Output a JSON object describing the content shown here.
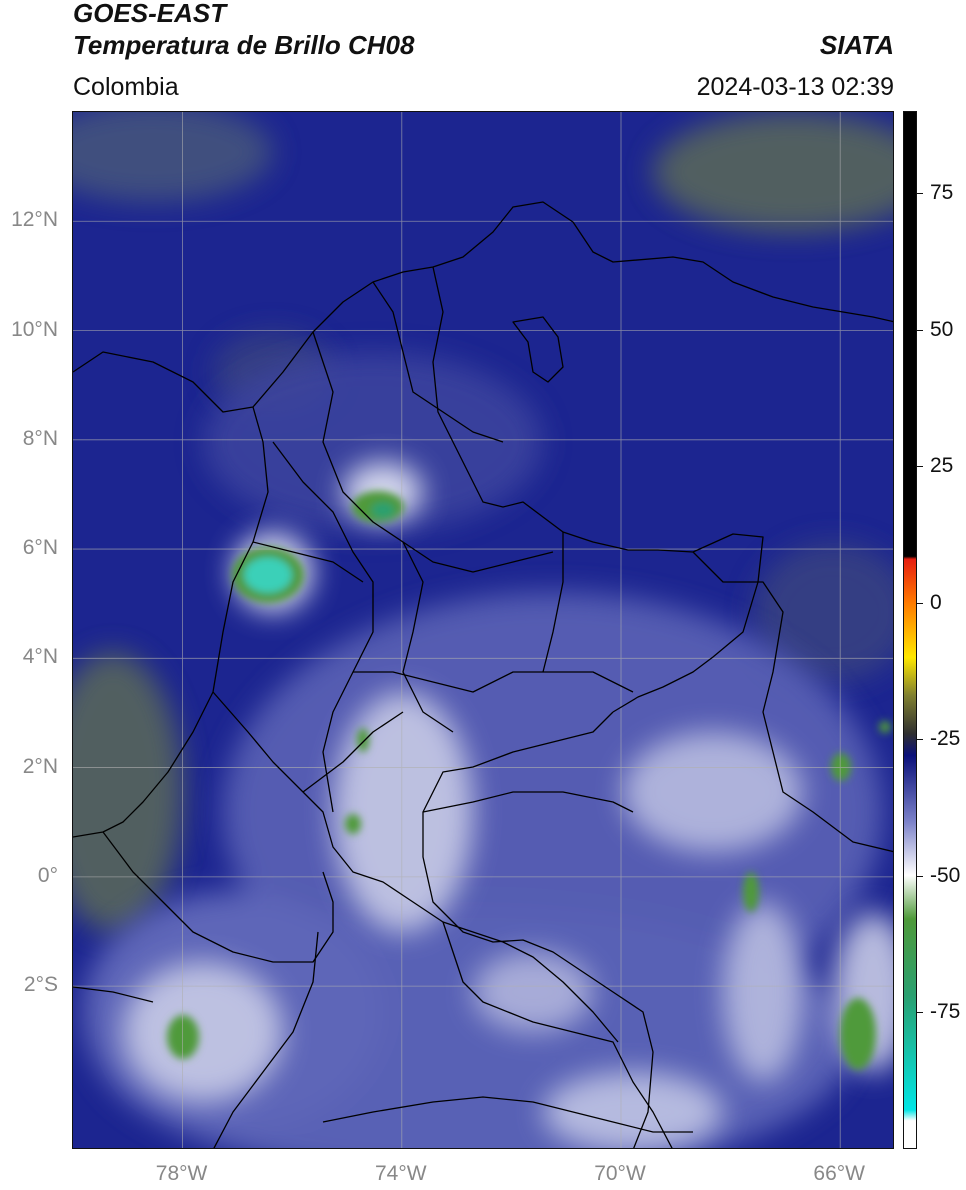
{
  "header": {
    "satellite": "GOES-EAST",
    "product": "Temperatura de Brillo CH08",
    "brand": "SIATA",
    "region": "Colombia",
    "datetime": "2024-03-13 02:39"
  },
  "map": {
    "lon_range": [
      -80.0,
      -65.0
    ],
    "lat_range": [
      -5.0,
      14.0
    ],
    "grid": true,
    "lat_ticks": [
      {
        "value": 12,
        "label": "12°N"
      },
      {
        "value": 10,
        "label": "10°N"
      },
      {
        "value": 8,
        "label": "8°N"
      },
      {
        "value": 6,
        "label": "6°N"
      },
      {
        "value": 4,
        "label": "4°N"
      },
      {
        "value": 2,
        "label": "2°N"
      },
      {
        "value": 0,
        "label": "0°"
      },
      {
        "value": -2,
        "label": "2°S"
      }
    ],
    "lon_ticks": [
      {
        "value": -78,
        "label": "78°W"
      },
      {
        "value": -74,
        "label": "74°W"
      },
      {
        "value": -70,
        "label": "70°W"
      },
      {
        "value": -66,
        "label": "66°W"
      }
    ],
    "colors": {
      "background": "#1a2390",
      "mid": "#5b63b8",
      "light": "#c8cbe6",
      "cold_green": "#4f9a3a",
      "coldest_cyan": "#3ad0b8",
      "land_olive": "#5f6e55",
      "border": "#000000",
      "grid": "#b0b0b0"
    }
  },
  "colorbar": {
    "range": [
      -100,
      90
    ],
    "ticks": [
      {
        "value": 75,
        "label": "75"
      },
      {
        "value": 50,
        "label": "50"
      },
      {
        "value": 25,
        "label": "25"
      },
      {
        "value": 0,
        "label": "0"
      },
      {
        "value": -25,
        "label": "-25"
      },
      {
        "value": -50,
        "label": "-50"
      },
      {
        "value": -75,
        "label": "-75"
      }
    ],
    "stops": [
      {
        "value": 90,
        "color": "#000000"
      },
      {
        "value": 8.5,
        "color": "#000000"
      },
      {
        "value": 8,
        "color": "#e61e10"
      },
      {
        "value": 0,
        "color": "#ff7a00"
      },
      {
        "value": -10,
        "color": "#ffe800"
      },
      {
        "value": -17,
        "color": "#808030"
      },
      {
        "value": -24,
        "color": "#303030"
      },
      {
        "value": -28,
        "color": "#0a107a"
      },
      {
        "value": -40,
        "color": "#7a80c8"
      },
      {
        "value": -50,
        "color": "#ffffff"
      },
      {
        "value": -58,
        "color": "#4f9a3a"
      },
      {
        "value": -72,
        "color": "#2aa070"
      },
      {
        "value": -93,
        "color": "#00e5e5"
      },
      {
        "value": -95,
        "color": "#ffffff"
      },
      {
        "value": -100,
        "color": "#ffffff"
      }
    ]
  }
}
